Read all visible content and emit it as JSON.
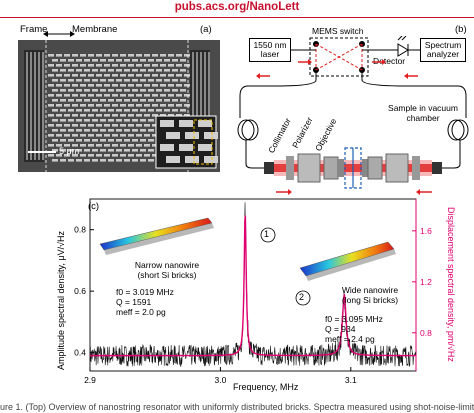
{
  "header": {
    "journal_url": "pubs.acs.org/NanoLett"
  },
  "panel_a": {
    "label": "(a)",
    "frame_label": "Frame",
    "membrane_label": "Membrane",
    "scale_bar_label": "5 μm"
  },
  "panel_b": {
    "label": "(b)",
    "laser_label": "1550 nm laser",
    "switch_label": "MEMS switch",
    "analyzer_label": "Spectrum analyzer",
    "detector_label": "Detector",
    "collimator_label": "Collimator",
    "polarizer_label": "Polarizer",
    "objective_label": "Objective",
    "sample_label": "Sample in vacuum chamber"
  },
  "panel_c": {
    "label": "(c)",
    "peak1_marker": "1",
    "peak2_marker": "2",
    "narrow": {
      "title": "Narrow nanowire",
      "subtitle": "(short Si bricks)",
      "f0": "f0 = 3.019 MHz",
      "q": "Q = 1591",
      "meff": "meff = 2.0 pg"
    },
    "wide": {
      "title": "Wide nanowire",
      "subtitle": "(long Si bricks)",
      "f0": "f0 = 3.095 MHz",
      "q": "Q = 934",
      "meff": "meff = 2.4 pg"
    }
  },
  "chart_data": {
    "type": "line",
    "xlabel": "Frequency, MHz",
    "ylabel": "Amplitude spectral density, μV/√Hz",
    "y2label": "Displacement spectral density, pm/√Hz",
    "xlim": [
      2.9,
      3.15
    ],
    "ylim": [
      0.34,
      0.9
    ],
    "y2lim": [
      0.5,
      1.85
    ],
    "x_ticks": [
      "2.9",
      "3.0",
      "3.1"
    ],
    "y_ticks": [
      "0.4",
      "0.6",
      "0.8"
    ],
    "y2_ticks": [
      "0.8",
      "1.2",
      "1.6"
    ],
    "series": [
      {
        "kind": "measured",
        "color": "#111111",
        "baseline": 0.39,
        "peaks": [
          {
            "x": 3.019,
            "y": 0.86
          },
          {
            "x": 3.095,
            "y": 0.59
          }
        ]
      },
      {
        "kind": "fit",
        "color": "#e0006f",
        "baseline": 0.39,
        "peaks": [
          {
            "x": 3.019,
            "y": 0.86,
            "Q": 1591
          },
          {
            "x": 3.095,
            "y": 0.59,
            "Q": 934
          }
        ]
      }
    ],
    "grid": false
  },
  "caption_fragment": "ure 1. (Top) Overview of nanostring resonator with uniformly distributed bricks. Spectra measured using shot-noise-limited"
}
